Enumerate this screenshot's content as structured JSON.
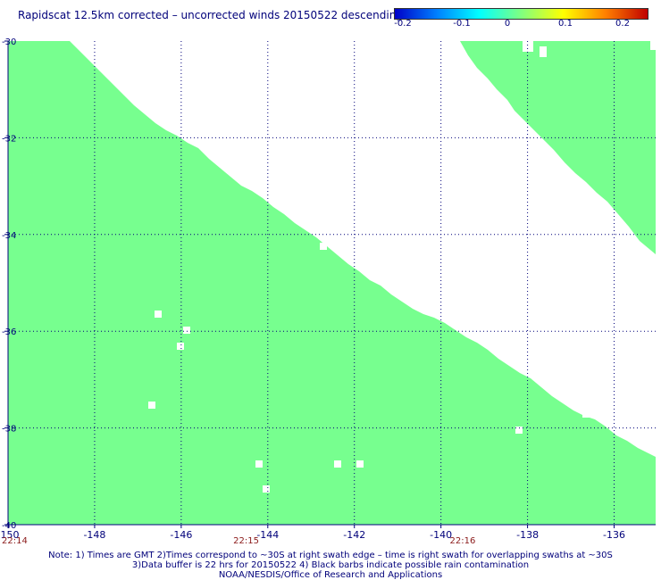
{
  "title": "Rapidscat 12.5km corrected – uncorrected winds 20150522 descending",
  "colorbar": {
    "labels": [
      "-0.2",
      "-0.1",
      "0",
      "0.1",
      "0.2"
    ],
    "gradient_colors": [
      "#0000c8",
      "#0080ff",
      "#00ffff",
      "#80ff80",
      "#ffff00",
      "#ff8000",
      "#c00000"
    ]
  },
  "map": {
    "lon_range": [
      -150,
      -135
    ],
    "lat_range": [
      -40,
      -30
    ],
    "x_ticks": [
      "-150",
      "-148",
      "-146",
      "-144",
      "-142",
      "-140",
      "-138",
      "-136"
    ],
    "y_ticks": [
      "-30",
      "-32",
      "-34",
      "-36",
      "-38",
      "-40"
    ],
    "swath_color": "#77ff8f",
    "times": [
      {
        "label": "22:14",
        "lon": -150
      },
      {
        "label": "22:15",
        "lon": -144.5
      },
      {
        "label": "22:16",
        "lon": -139.5
      }
    ]
  },
  "notes": [
    "Note: 1) Times are GMT 2)Times correspond to ~30S at right swath edge – time is right swath for overlapping swaths at ~30S",
    "3)Data buffer is 22 hrs for 20150522 4) Black barbs indicate possible rain contamination",
    "NOAA/NESDIS/Office of Research and Applications"
  ]
}
